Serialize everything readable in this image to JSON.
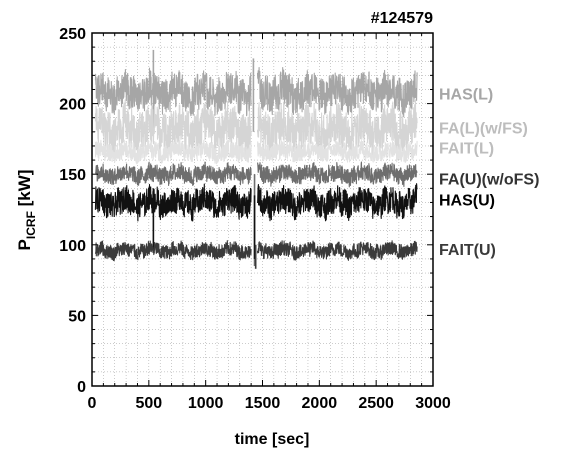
{
  "chart_data": {
    "type": "line",
    "shot_label": "#124579",
    "xlabel": "time [sec]",
    "ylabel_main": "P",
    "ylabel_sub": "ICRF",
    "ylabel_unit": " [kW]",
    "xlim": [
      0,
      3000
    ],
    "ylim": [
      0,
      250
    ],
    "x_ticks": [
      0,
      500,
      1000,
      1500,
      2000,
      2500,
      3000
    ],
    "y_ticks": [
      0,
      50,
      100,
      150,
      200,
      250
    ],
    "x_minor_step": 100,
    "y_minor_step": 10,
    "grid": "dotted",
    "series": [
      {
        "name": "HAS(L)",
        "color": "#a6a6a6",
        "center": 208,
        "amplitude": 12,
        "t_start": 30,
        "t_end": 2860,
        "gap": [
          1400,
          1455
        ],
        "spikes": [
          [
            540,
            238,
            180
          ],
          [
            1420,
            232,
            180
          ]
        ]
      },
      {
        "name": "FA(L)(w/FS)",
        "color": "#d5d5d5",
        "center": 182,
        "amplitude": 14,
        "t_start": 30,
        "t_end": 2860,
        "gap": [
          1400,
          1455
        ],
        "spikes": []
      },
      {
        "name": "FAIT(L)",
        "color": "#e2e2e2",
        "center": 166,
        "amplitude": 6,
        "t_start": 30,
        "t_end": 2860,
        "gap": [
          1400,
          1455
        ],
        "spikes": []
      },
      {
        "name": "FA(U)(w/oFS)",
        "color": "#6e6e6e",
        "center": 150,
        "amplitude": 6,
        "t_start": 30,
        "t_end": 2860,
        "gap": [
          1400,
          1455
        ],
        "spikes": [
          [
            1430,
            150,
            85
          ]
        ]
      },
      {
        "name": "HAS(U)",
        "color": "#111111",
        "center": 130,
        "amplitude": 9,
        "t_start": 30,
        "t_end": 2860,
        "gap": [
          1400,
          1455
        ],
        "spikes": [
          [
            540,
            95,
            140
          ],
          [
            1430,
            90,
            135
          ]
        ]
      },
      {
        "name": "FAIT(U)",
        "color": "#3a3a3a",
        "center": 96,
        "amplitude": 5,
        "t_start": 30,
        "t_end": 2860,
        "gap": [
          1400,
          1455
        ],
        "spikes": [
          [
            1440,
            83,
            100
          ]
        ]
      }
    ],
    "legend_labels": [
      {
        "text": "HAS(L)",
        "color": "#a6a6a6",
        "y": 207
      },
      {
        "text": "FA(L)(w/FS)",
        "color": "#bdbdbd",
        "y": 183
      },
      {
        "text": "FAIT(L)",
        "color": "#bdbdbd",
        "y": 169
      },
      {
        "text": "FA(U)(w/oFS)",
        "color": "#333333",
        "y": 147
      },
      {
        "text": "HAS(U)",
        "color": "#000000",
        "y": 132
      },
      {
        "text": "FAIT(U)",
        "color": "#3a3a3a",
        "y": 97
      }
    ]
  }
}
